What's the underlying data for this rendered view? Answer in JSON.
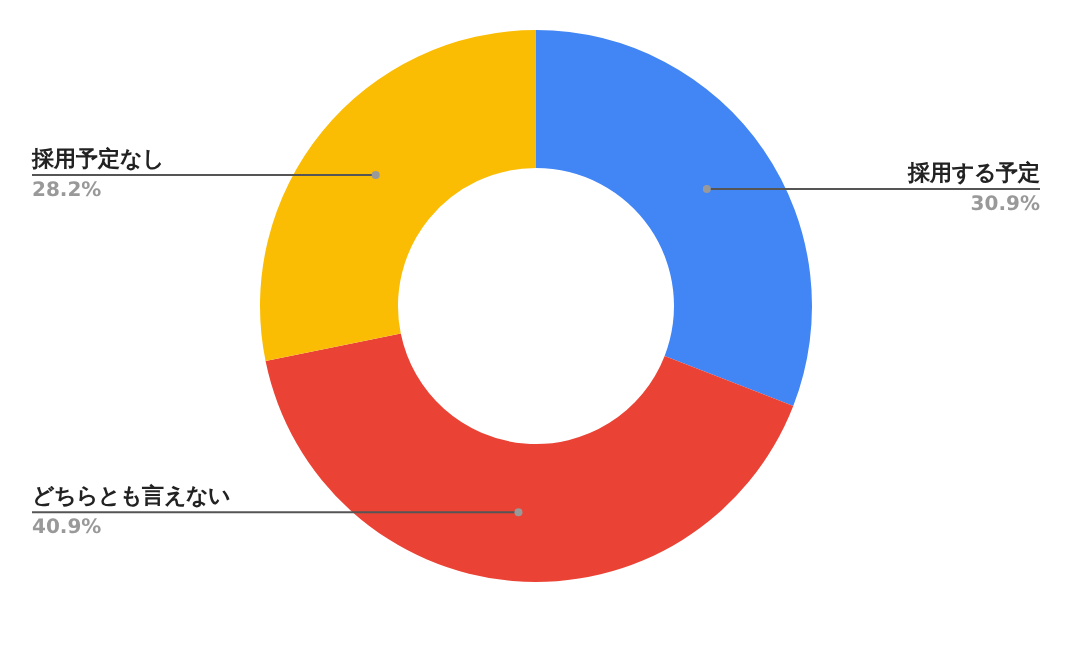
{
  "chart_data": {
    "type": "donut",
    "categories": [
      "採用する予定",
      "どちらとも言えない",
      "採用予定なし"
    ],
    "values": [
      30.9,
      40.9,
      28.2
    ],
    "colors": [
      "#4285f4",
      "#ea4335",
      "#fbbc04"
    ],
    "value_labels": [
      "30.9%",
      "40.9%",
      "28.2%"
    ],
    "legend": false
  }
}
